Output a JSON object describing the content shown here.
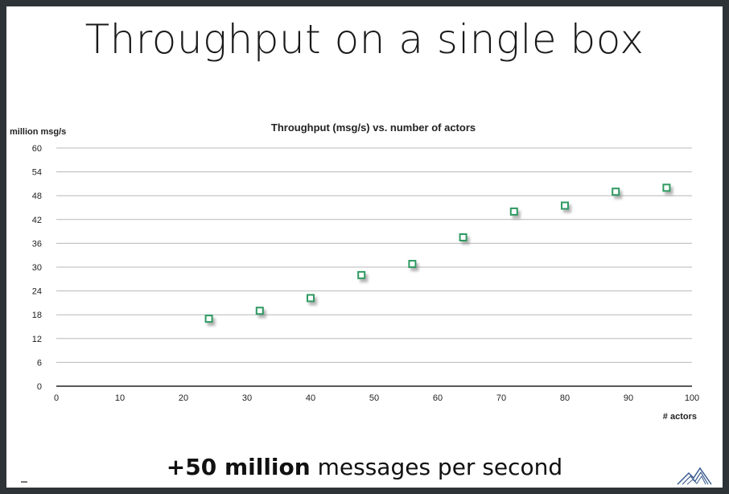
{
  "slide": {
    "title": "Throughput on a single box",
    "footer_bold": "+50 million",
    "footer_text": " messages per second"
  },
  "chart_data": {
    "type": "scatter",
    "title": "Throughput (msg/s) vs. number of actors",
    "ylabel": "million msg/s",
    "xlabel": "# actors",
    "xlim": [
      0,
      100
    ],
    "ylim": [
      0,
      60
    ],
    "xticks": [
      0,
      10,
      20,
      30,
      40,
      50,
      60,
      70,
      80,
      90,
      100
    ],
    "yticks": [
      0,
      6,
      12,
      18,
      24,
      30,
      36,
      42,
      48,
      54,
      60
    ],
    "grid": true,
    "marker_color": "#2e9a62",
    "series": [
      {
        "x": [
          24,
          32,
          40,
          48,
          56,
          64,
          72,
          80,
          88,
          96
        ],
        "y": [
          17,
          19,
          22.2,
          28,
          30.8,
          37.5,
          44,
          45.5,
          49,
          50
        ]
      }
    ]
  }
}
